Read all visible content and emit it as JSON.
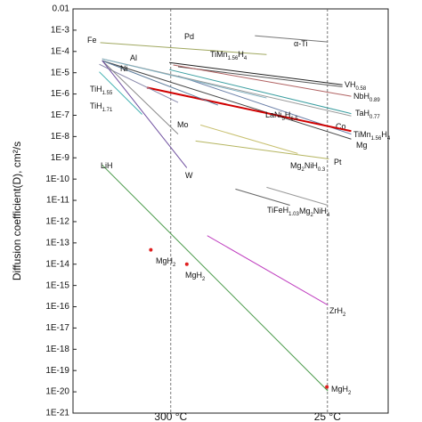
{
  "chart_data": {
    "type": "line",
    "ylabel": "Diffusion coefficient(D), cm²/s",
    "ylog": true,
    "ylim": [
      1e-21,
      0.01
    ],
    "yticks": [
      0.01,
      {
        "value": 0.001,
        "label": "1E-3"
      },
      {
        "value": 0.0001,
        "label": "1E-4"
      },
      {
        "value": 1e-05,
        "label": "1E-5"
      },
      {
        "value": 1e-06,
        "label": "1E-6"
      },
      {
        "value": 1e-07,
        "label": "1E-7"
      },
      {
        "value": 1e-08,
        "label": "1E-8"
      },
      {
        "value": 1e-09,
        "label": "1E-9"
      },
      {
        "value": 1e-10,
        "label": "1E-10"
      },
      {
        "value": 1e-11,
        "label": "1E-11"
      },
      {
        "value": 1e-12,
        "label": "1E-12"
      },
      {
        "value": 1e-13,
        "label": "1E-13"
      },
      {
        "value": 1e-14,
        "label": "1E-14"
      },
      {
        "value": 1e-15,
        "label": "1E-15"
      },
      {
        "value": 1e-16,
        "label": "1E-16"
      },
      {
        "value": 1e-17,
        "label": "1E-17"
      },
      {
        "value": 1e-18,
        "label": "1E-18"
      },
      {
        "value": 1e-19,
        "label": "1E-19"
      },
      {
        "value": 1e-20,
        "label": "1E-20"
      },
      {
        "value": 1e-21,
        "label": "1E-21"
      }
    ],
    "xlim": [
      0.74,
      3.98
    ],
    "vlines": [
      {
        "x": 1.745,
        "label": "300 °C"
      },
      {
        "x": 3.356,
        "label": "25 °C"
      }
    ],
    "series": [
      {
        "name": [
          "α-Ti"
        ],
        "color": "#777777",
        "x": [
          2.61,
          3.36
        ],
        "values": [
          0.00055,
          0.00028
        ]
      },
      {
        "name": [
          "Fe"
        ],
        "color": "#a0a860",
        "x": [
          1.02,
          2.73
        ],
        "values": [
          0.00026,
          7.2e-05
        ]
      },
      {
        "name": [
          "Pd"
        ],
        "color": "#222222",
        "x": [
          1.73,
          3.51
        ],
        "values": [
          3e-05,
          2.7e-06
        ]
      },
      {
        "name": [
          "VH",
          "0.58"
        ],
        "color": "#555555",
        "x": [
          1.82,
          3.51
        ],
        "values": [
          1.9e-05,
          2.2e-06
        ]
      },
      {
        "name": [
          "NbH",
          "0.89"
        ],
        "color": "#b06060",
        "x": [
          1.77,
          3.6
        ],
        "values": [
          2.3e-05,
          7.8e-07
        ]
      },
      {
        "name": [
          "TaH",
          "0.77"
        ],
        "color": "#3a9ea0",
        "x": [
          1.73,
          3.6
        ],
        "values": [
          1.4e-05,
          1.2e-07
        ]
      },
      {
        "name": [
          "TiMn",
          "1.56",
          "H",
          "4"
        ],
        "color": "#6a7fa8",
        "x": [
          1.82,
          3.6
        ],
        "values": [
          7.1e-06,
          1.3e-08
        ]
      },
      {
        "name": [
          "Co"
        ],
        "color": "#999999",
        "x": [
          1.04,
          3.6
        ],
        "values": [
          4.5e-05,
          9.3e-08
        ]
      },
      {
        "name": [
          "Mg"
        ],
        "color": "#444444",
        "x": [
          1.04,
          3.6
        ],
        "values": [
          3.7e-05,
          7.6e-09
        ]
      },
      {
        "name": [
          "Pt"
        ],
        "color": "#b5b560",
        "x": [
          2.0,
          3.37
        ],
        "values": [
          6.2e-09,
          8.9e-10
        ]
      },
      {
        "name": [
          "Mg",
          "2",
          "NiH",
          "0.3"
        ],
        "color": "#c8c070",
        "x": [
          2.05,
          3.05
        ],
        "values": [
          3.5e-08,
          1.6e-09
        ]
      },
      {
        "name": [
          "LaNi",
          "5",
          "H",
          "6.5"
        ],
        "color": "#d00000",
        "x": [
          1.5,
          3.6
        ],
        "values": [
          2e-06,
          1.8e-08
        ]
      },
      {
        "name": [
          "Al"
        ],
        "color": "#7fb0c0",
        "x": [
          1.04,
          2.73
        ],
        "values": [
          4.5e-05,
          6.5e-07
        ]
      },
      {
        "name": [
          "Ni"
        ],
        "color": "#5a7a9a",
        "x": [
          1.04,
          2.23
        ],
        "values": [
          3.7e-05,
          3e-07
        ]
      },
      {
        "name": [
          "TiH",
          "1.55"
        ],
        "color": "#8888aa",
        "x": [
          1.01,
          1.82
        ],
        "values": [
          2.5e-05,
          4e-07
        ]
      },
      {
        "name": [
          "TiH",
          "1.71"
        ],
        "color": "#40b0b0",
        "x": [
          1.01,
          1.45
        ],
        "values": [
          1.1e-05,
          1.1e-07
        ]
      },
      {
        "name": [
          "Mo"
        ],
        "color": "#888888",
        "x": [
          1.04,
          1.82
        ],
        "values": [
          3.7e-05,
          1.3e-08
        ]
      },
      {
        "name": [
          "W"
        ],
        "color": "#7050a0",
        "x": [
          1.04,
          1.91
        ],
        "values": [
          3.7e-05,
          3.4e-10
        ]
      },
      {
        "name": [
          "LiH"
        ],
        "color": "#4a9a4a",
        "x": [
          1.04,
          3.36
        ],
        "values": [
          4.6e-10,
          1.1e-20
        ]
      },
      {
        "name": [
          "ZrH",
          "2"
        ],
        "color": "#c040c0",
        "x": [
          2.12,
          3.36
        ],
        "values": [
          2.2e-13,
          1.2e-16
        ]
      },
      {
        "name": [
          "TiFeH",
          "1.03"
        ],
        "color": "#666666",
        "x": [
          2.41,
          2.97
        ],
        "values": [
          3.4e-11,
          5.9e-12
        ]
      },
      {
        "name": [
          "Mg",
          "2",
          "NiH",
          "4"
        ],
        "color": "#999999",
        "x": [
          2.73,
          3.36
        ],
        "values": [
          4.1e-11,
          5.9e-12
        ]
      }
    ],
    "points": {
      "name": [
        "MgH",
        "2"
      ],
      "color": "#e02020",
      "x": [
        1.54,
        1.91,
        3.35
      ],
      "values": [
        4.7e-14,
        1e-14,
        1.7e-20
      ]
    }
  }
}
